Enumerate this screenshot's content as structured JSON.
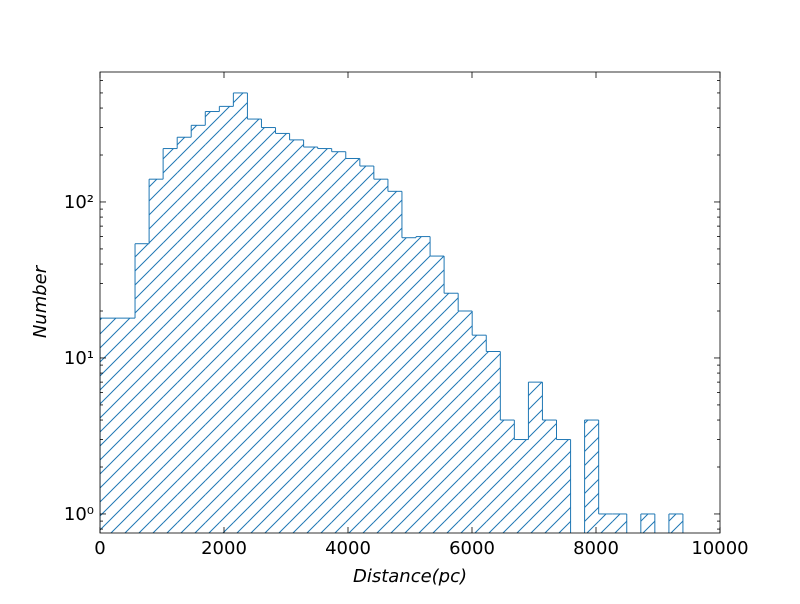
{
  "chart_data": {
    "type": "histogram",
    "xlabel": "Distance(pc)",
    "ylabel": "Number",
    "bins": [
      0,
      565,
      792,
      1018,
      1245,
      1471,
      1698,
      1925,
      2151,
      2378,
      2604,
      2831,
      3058,
      3284,
      3511,
      3737,
      3964,
      4191,
      4417,
      4644,
      4870,
      5097,
      5324,
      5550,
      5777,
      6003,
      6230,
      6457,
      6683,
      6910,
      7136,
      7363,
      7590,
      7816,
      8043,
      8269,
      8496,
      8723,
      8949,
      9176,
      9402
    ],
    "values": [
      18,
      54,
      140,
      220,
      260,
      310,
      380,
      410,
      500,
      340,
      300,
      275,
      250,
      225,
      220,
      210,
      190,
      170,
      140,
      117,
      59,
      60,
      45,
      26,
      20,
      14,
      11,
      4,
      3,
      7,
      4,
      3,
      0,
      4,
      1,
      1,
      0,
      1,
      0,
      1
    ],
    "color": "#1f77b4",
    "xlim": [
      0,
      10000
    ],
    "xticks": [
      0,
      2000,
      4000,
      6000,
      8000,
      10000
    ],
    "ylim": [
      0.755,
      681
    ],
    "yscale": "log",
    "yticks": [
      {
        "value": 1,
        "label": "10⁰"
      },
      {
        "value": 10,
        "label": "10¹"
      },
      {
        "value": 100,
        "label": "10²"
      }
    ],
    "yminorticks": [
      0.8,
      0.9,
      2,
      3,
      4,
      5,
      6,
      7,
      8,
      9,
      20,
      30,
      40,
      50,
      60,
      70,
      80,
      90,
      200,
      300,
      400,
      500,
      600
    ]
  }
}
